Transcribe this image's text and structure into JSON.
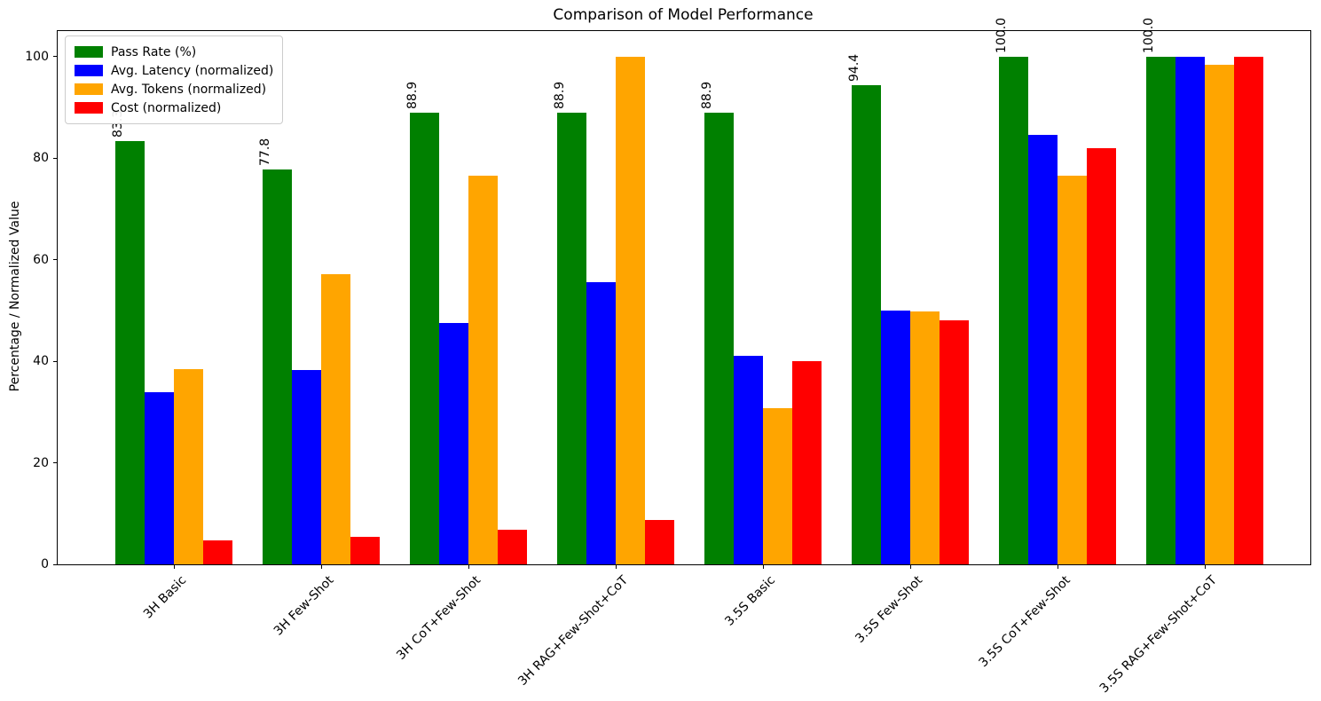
{
  "title": "Comparison of Model Performance",
  "chart_data": {
    "type": "bar",
    "title": "Comparison of Model Performance",
    "xlabel": "",
    "ylabel": "Percentage / Normalized Value",
    "ylim": [
      0,
      105
    ],
    "yticks": [
      0,
      20,
      40,
      60,
      80,
      100
    ],
    "grid": false,
    "legend_position": "upper left",
    "categories": [
      "3H Basic",
      "3H Few-Shot",
      "3H CoT+Few-Shot",
      "3H RAG+Few-Shot+CoT",
      "3.5S Basic",
      "3.5S Few-Shot",
      "3.5S CoT+Few-Shot",
      "3.5S RAG+Few-Shot+CoT"
    ],
    "series": [
      {
        "name": "Pass Rate (%)",
        "color": "#008000",
        "values": [
          83.3,
          77.8,
          88.9,
          88.9,
          88.9,
          94.4,
          100.0,
          100.0
        ],
        "bar_labels": [
          "83.3",
          "77.8",
          "88.9",
          "88.9",
          "88.9",
          "94.4",
          "100.0",
          "100.0"
        ]
      },
      {
        "name": "Avg. Latency (normalized)",
        "color": "#0000ff",
        "values": [
          33.9,
          38.2,
          47.5,
          55.6,
          41.0,
          49.9,
          84.5,
          100.0
        ],
        "bar_labels": null
      },
      {
        "name": "Avg. Tokens (normalized)",
        "color": "#ffa500",
        "values": [
          38.4,
          57.2,
          76.5,
          100.0,
          30.8,
          49.8,
          76.5,
          98.3
        ],
        "bar_labels": null
      },
      {
        "name": "Cost (normalized)",
        "color": "#ff0000",
        "values": [
          4.7,
          5.4,
          6.8,
          8.8,
          40.0,
          48.1,
          82.0,
          100.0
        ],
        "bar_labels": null
      }
    ]
  }
}
